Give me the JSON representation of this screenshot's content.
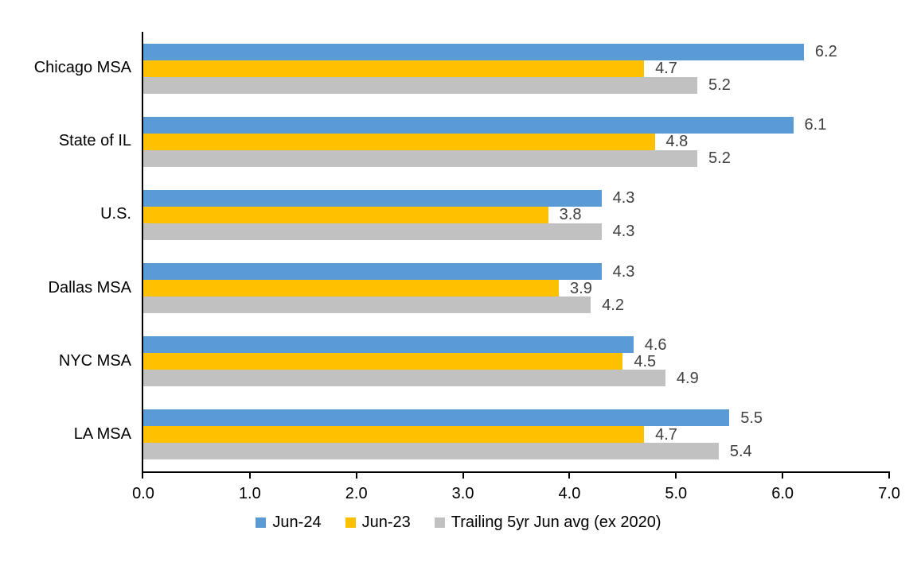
{
  "chart_data": {
    "type": "bar",
    "orientation": "horizontal",
    "title": "",
    "xlabel": "",
    "ylabel": "",
    "categories": [
      "Chicago MSA",
      "State of IL",
      "U.S.",
      "Dallas MSA",
      "NYC MSA",
      "LA MSA"
    ],
    "series": [
      {
        "name": "Jun-24",
        "color": "#5B9BD5",
        "values": [
          6.2,
          6.1,
          4.3,
          4.3,
          4.6,
          5.5
        ]
      },
      {
        "name": "Jun-23",
        "color": "#FFC000",
        "values": [
          4.7,
          4.8,
          3.8,
          3.9,
          4.5,
          4.7
        ]
      },
      {
        "name": "Trailing 5yr Jun avg (ex 2020)",
        "color": "#C1C1C1",
        "values": [
          5.2,
          5.2,
          4.3,
          4.2,
          4.9,
          5.4
        ]
      }
    ],
    "xlim": [
      0,
      7
    ],
    "x_ticks": [
      "0.0",
      "1.0",
      "2.0",
      "3.0",
      "4.0",
      "5.0",
      "6.0",
      "7.0"
    ],
    "data_label_color": "#404040",
    "axis_color": "#000000",
    "grid": "off",
    "legend_position": "bottom",
    "data_labels": "outside-end, one decimal"
  }
}
